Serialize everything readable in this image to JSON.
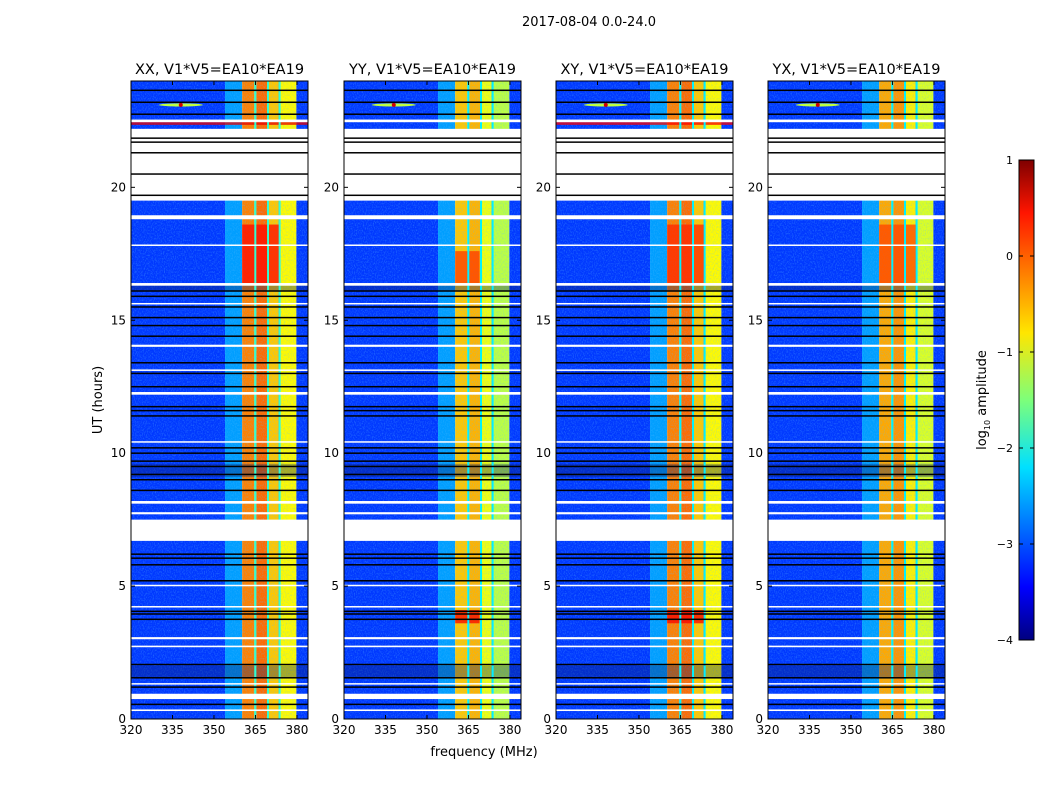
{
  "chart_data": {
    "type": "heatmap",
    "suptitle": "2017-08-04 0.0-24.0",
    "xlabel": "frequency (MHz)",
    "ylabel": "UT (hours)",
    "xlim": [
      320,
      384
    ],
    "ylim": [
      0,
      24
    ],
    "xticks": [
      "320",
      "335",
      "350",
      "365",
      "380"
    ],
    "yticks": [
      "0",
      "5",
      "10",
      "15",
      "20"
    ],
    "colorbar": {
      "label_main": "log",
      "label_sub": "10",
      "label_rest": " amplitude",
      "range": [
        -4,
        1
      ],
      "ticks": [
        "−4",
        "−3",
        "−2",
        "−1",
        "0",
        "1"
      ],
      "colormap": "jet"
    },
    "panels": [
      {
        "title": "XX, V1*V5=EA10*EA19",
        "band_offset": 0.0,
        "hot_patches": [
          {
            "t": [
              16.4,
              18.6
            ],
            "f": [
              360.2,
              374
            ],
            "level": 0.35
          },
          {
            "t": [
              22.35,
              22.5
            ],
            "f": [
              320,
              384
            ],
            "level": 0.5
          }
        ],
        "spike": {
          "f": 338,
          "t": 23.1
        }
      },
      {
        "title": "YY, V1*V5=EA10*EA19",
        "band_offset": -0.35,
        "hot_patches": [
          {
            "t": [
              16.4,
              17.6
            ],
            "f": [
              360.2,
              369
            ],
            "level": 0.1
          },
          {
            "t": [
              3.6,
              4.1
            ],
            "f": [
              360.2,
              369
            ],
            "level": 0.4
          }
        ],
        "spike": {
          "f": 338,
          "t": 23.1
        }
      },
      {
        "title": "XY, V1*V5=EA10*EA19",
        "band_offset": 0.0,
        "hot_patches": [
          {
            "t": [
              16.4,
              18.6
            ],
            "f": [
              360.2,
              374
            ],
            "level": 0.2
          },
          {
            "t": [
              22.35,
              22.5
            ],
            "f": [
              320,
              384
            ],
            "level": 0.4
          },
          {
            "t": [
              3.6,
              4.1
            ],
            "f": [
              360.2,
              374
            ],
            "level": 0.4
          }
        ],
        "spike": {
          "f": 338,
          "t": 23.1
        }
      },
      {
        "title": "YX, V1*V5=EA10*EA19",
        "band_offset": -0.2,
        "hot_patches": [
          {
            "t": [
              16.4,
              18.6
            ],
            "f": [
              360.2,
              374
            ],
            "level": 0.05
          }
        ],
        "spike": {
          "f": 338,
          "t": 23.1
        }
      }
    ],
    "freq_bands": [
      {
        "f": [
          320,
          354
        ],
        "level": -3.1
      },
      {
        "f": [
          354,
          360.2
        ],
        "level": -2.6
      },
      {
        "f": [
          360.2,
          364.6
        ],
        "level": -0.25
      },
      {
        "f": [
          364.6,
          365.3
        ],
        "level": -1.9
      },
      {
        "f": [
          365.3,
          369.2
        ],
        "level": -0.15
      },
      {
        "f": [
          369.2,
          369.9
        ],
        "level": -1.9
      },
      {
        "f": [
          369.9,
          373.4
        ],
        "level": -0.6
      },
      {
        "f": [
          373.4,
          374.1
        ],
        "level": -2.8
      },
      {
        "f": [
          374.1,
          379.8
        ],
        "level": -0.85
      },
      {
        "f": [
          379.8,
          384
        ],
        "level": -3.1
      }
    ],
    "flagged_hours": [
      [
        0.3,
        0.36
      ],
      [
        0.75,
        0.95
      ],
      [
        1.3,
        1.35
      ],
      [
        2.7,
        2.76
      ],
      [
        3.0,
        3.08
      ],
      [
        4.2,
        4.25
      ],
      [
        5.0,
        5.05
      ],
      [
        6.7,
        7.5
      ],
      [
        7.7,
        7.78
      ],
      [
        8.1,
        8.2
      ],
      [
        10.4,
        10.45
      ],
      [
        12.2,
        12.3
      ],
      [
        13.1,
        13.15
      ],
      [
        14.0,
        14.08
      ],
      [
        15.6,
        15.65
      ],
      [
        16.3,
        16.4
      ],
      [
        17.8,
        17.85
      ],
      [
        18.8,
        18.95
      ],
      [
        19.5,
        22.2
      ],
      [
        22.45,
        22.55
      ]
    ],
    "dark_hours": [
      [
        1.55,
        2.0
      ],
      [
        16.1,
        16.3
      ],
      [
        9.1,
        9.6
      ]
    ],
    "black_lines": [
      0.55,
      1.2,
      1.55,
      2.05,
      3.75,
      3.95,
      4.05,
      5.2,
      5.8,
      6.05,
      6.2,
      8.6,
      9.0,
      9.2,
      9.5,
      9.7,
      10.0,
      10.2,
      11.4,
      11.6,
      11.75,
      12.5,
      13.0,
      13.4,
      14.4,
      14.8,
      15.1,
      15.5,
      15.9,
      16.1,
      19.7,
      20.5,
      21.3,
      21.7,
      21.85,
      22.75,
      23.2,
      23.65
    ]
  }
}
